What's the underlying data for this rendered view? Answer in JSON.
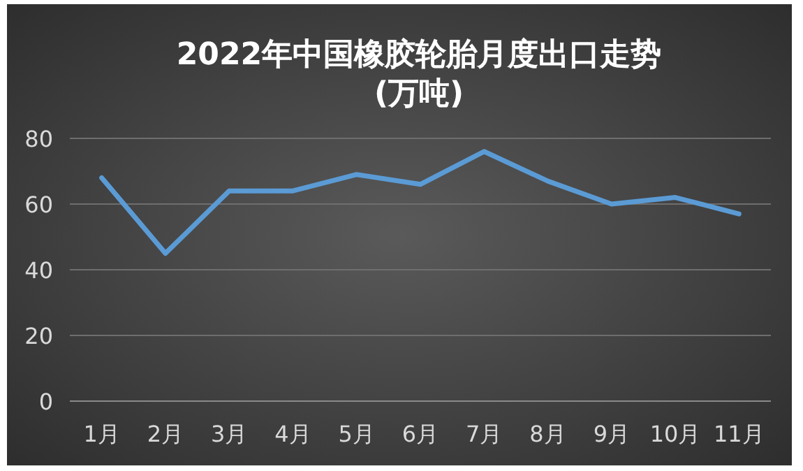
{
  "chart_data": {
    "type": "line",
    "title": "2022年中国橡胶轮胎月度出口走势",
    "subtitle": "(万吨)",
    "categories": [
      "1月",
      "2月",
      "3月",
      "4月",
      "5月",
      "6月",
      "7月",
      "8月",
      "9月",
      "10月",
      "11月"
    ],
    "values": [
      68,
      45,
      64,
      64,
      69,
      66,
      76,
      67,
      60,
      62,
      57
    ],
    "color": "#5b9bd5",
    "ylim": [
      0,
      80
    ],
    "yticks": [
      0,
      20,
      40,
      60,
      80
    ],
    "grid": "y",
    "line_style": "solid"
  }
}
